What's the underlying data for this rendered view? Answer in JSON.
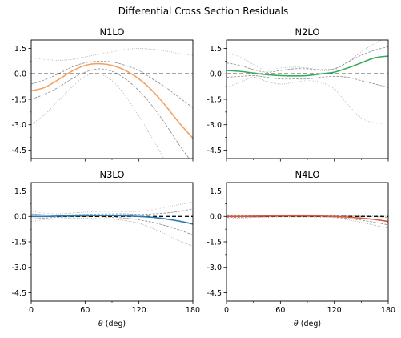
{
  "figure": {
    "title": "Differential Cross Section Residuals"
  },
  "chart_data": [
    {
      "type": "line",
      "title": "N1LO",
      "xlabel": "",
      "ylabel": "",
      "xlim": [
        0,
        180
      ],
      "ylim": [
        -5,
        2
      ],
      "yticks": [
        "1.5",
        "0.0",
        "-1.5",
        "-3.0",
        "-4.5"
      ],
      "xticks": [],
      "color": "#f4a261",
      "zero_line": true,
      "x": [
        0,
        15,
        30,
        45,
        60,
        75,
        90,
        105,
        120,
        135,
        150,
        165,
        180
      ],
      "center": [
        -1.0,
        -0.8,
        -0.35,
        0.15,
        0.5,
        0.6,
        0.5,
        0.2,
        -0.3,
        -1.0,
        -1.9,
        -2.9,
        -3.8
      ],
      "band_1sigma_upper": [
        -0.6,
        -0.35,
        0.0,
        0.4,
        0.65,
        0.75,
        0.7,
        0.5,
        0.2,
        -0.3,
        -0.8,
        -1.4,
        -2.0
      ],
      "band_1sigma_lower": [
        -1.5,
        -1.2,
        -0.8,
        -0.3,
        0.1,
        0.3,
        0.15,
        -0.3,
        -1.0,
        -1.9,
        -3.0,
        -4.2,
        -5.3
      ],
      "band_2sigma_upper": [
        0.95,
        0.85,
        0.8,
        0.85,
        1.0,
        1.15,
        1.3,
        1.45,
        1.5,
        1.45,
        1.35,
        1.2,
        1.1
      ],
      "band_2sigma_lower": [
        -3.0,
        -2.4,
        -1.6,
        -0.8,
        -0.15,
        0.0,
        -0.4,
        -1.3,
        -2.5,
        -3.8,
        -5.2,
        -6.5,
        -8.0
      ]
    },
    {
      "type": "line",
      "title": "N2LO",
      "xlabel": "",
      "ylabel": "",
      "xlim": [
        0,
        180
      ],
      "ylim": [
        -5,
        2
      ],
      "yticks": [
        "1.5",
        "0.0",
        "-1.5",
        "-3.0",
        "-4.5"
      ],
      "xticks": [],
      "color": "#3aaa5c",
      "zero_line": true,
      "x": [
        0,
        15,
        30,
        45,
        60,
        75,
        90,
        105,
        120,
        135,
        150,
        165,
        180
      ],
      "center": [
        0.2,
        0.15,
        0.05,
        -0.05,
        -0.1,
        -0.12,
        -0.1,
        0.0,
        0.1,
        0.35,
        0.65,
        0.95,
        1.05
      ],
      "band_1sigma_upper": [
        0.65,
        0.5,
        0.25,
        0.1,
        0.2,
        0.3,
        0.3,
        0.25,
        0.3,
        0.7,
        1.1,
        1.4,
        1.6
      ],
      "band_1sigma_lower": [
        -0.2,
        -0.15,
        -0.1,
        -0.2,
        -0.3,
        -0.3,
        -0.3,
        -0.2,
        -0.15,
        -0.2,
        -0.4,
        -0.6,
        -0.8
      ],
      "band_2sigma_upper": [
        1.2,
        1.0,
        0.55,
        0.2,
        0.35,
        0.4,
        0.35,
        0.2,
        0.25,
        0.7,
        1.3,
        1.8,
        2.2
      ],
      "band_2sigma_lower": [
        -0.8,
        -0.5,
        -0.2,
        -0.45,
        -0.6,
        -0.5,
        -0.4,
        -0.5,
        -0.9,
        -1.8,
        -2.6,
        -2.9,
        -2.9
      ]
    },
    {
      "type": "line",
      "title": "N3LO",
      "xlabel": "θ (deg)",
      "ylabel": "",
      "xlim": [
        0,
        180
      ],
      "ylim": [
        -5,
        2
      ],
      "yticks": [
        "1.5",
        "0.0",
        "-1.5",
        "-3.0",
        "-4.5"
      ],
      "xticks": [
        "0",
        "60",
        "120",
        "180"
      ],
      "color": "#2a7ab8",
      "zero_line": true,
      "x": [
        0,
        15,
        30,
        45,
        60,
        75,
        90,
        105,
        120,
        135,
        150,
        165,
        180
      ],
      "center": [
        0.0,
        0.0,
        0.02,
        0.03,
        0.05,
        0.05,
        0.05,
        0.03,
        0.0,
        -0.05,
        -0.15,
        -0.28,
        -0.45
      ],
      "band_1sigma_upper": [
        0.15,
        0.1,
        0.08,
        0.1,
        0.12,
        0.14,
        0.15,
        0.15,
        0.12,
        0.15,
        0.2,
        0.3,
        0.45
      ],
      "band_1sigma_lower": [
        -0.15,
        -0.1,
        -0.05,
        -0.02,
        0.0,
        -0.02,
        -0.05,
        -0.1,
        -0.2,
        -0.35,
        -0.55,
        -0.8,
        -1.1
      ],
      "band_2sigma_upper": [
        0.3,
        0.2,
        0.15,
        0.2,
        0.25,
        0.28,
        0.3,
        0.3,
        0.3,
        0.4,
        0.55,
        0.7,
        0.85
      ],
      "band_2sigma_lower": [
        -0.3,
        -0.2,
        -0.15,
        -0.1,
        -0.1,
        -0.12,
        -0.15,
        -0.25,
        -0.4,
        -0.7,
        -1.05,
        -1.45,
        -1.75
      ]
    },
    {
      "type": "line",
      "title": "N4LO",
      "xlabel": "θ (deg)",
      "ylabel": "",
      "xlim": [
        0,
        180
      ],
      "ylim": [
        -5,
        2
      ],
      "yticks": [
        "1.5",
        "0.0",
        "-1.5",
        "-3.0",
        "-4.5"
      ],
      "xticks": [
        "0",
        "60",
        "120",
        "180"
      ],
      "color": "#e0533a",
      "zero_line": true,
      "x": [
        0,
        15,
        30,
        45,
        60,
        75,
        90,
        105,
        120,
        135,
        150,
        165,
        180
      ],
      "center": [
        0.0,
        0.0,
        0.01,
        0.02,
        0.03,
        0.03,
        0.03,
        0.02,
        0.0,
        -0.04,
        -0.1,
        -0.18,
        -0.3
      ],
      "band_1sigma_upper": [
        0.06,
        0.05,
        0.05,
        0.06,
        0.07,
        0.07,
        0.07,
        0.06,
        0.04,
        0.02,
        0.0,
        -0.02,
        -0.05
      ],
      "band_1sigma_lower": [
        -0.06,
        -0.05,
        -0.03,
        -0.02,
        -0.01,
        -0.01,
        -0.01,
        -0.02,
        -0.05,
        -0.12,
        -0.22,
        -0.35,
        -0.5
      ],
      "band_2sigma_upper": [
        0.12,
        0.1,
        0.08,
        0.09,
        0.1,
        0.1,
        0.1,
        0.09,
        0.07,
        0.06,
        0.05,
        0.05,
        0.06
      ],
      "band_2sigma_lower": [
        -0.12,
        -0.1,
        -0.06,
        -0.05,
        -0.04,
        -0.04,
        -0.04,
        -0.05,
        -0.09,
        -0.2,
        -0.35,
        -0.52,
        -0.7
      ]
    }
  ]
}
